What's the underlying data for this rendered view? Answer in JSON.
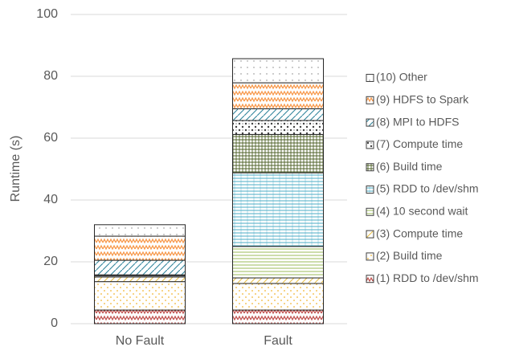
{
  "chart_data": {
    "type": "stacked_bar",
    "ylabel": "Runtime (s)",
    "categories": [
      "No Fault",
      "Fault"
    ],
    "series": [
      {
        "name": "(1) RDD to /dev/shm",
        "color": "#c0504d",
        "values": [
          4.4,
          4.4
        ]
      },
      {
        "name": "(2) Build time",
        "color": "#f2b632",
        "values": [
          9.2,
          8.6
        ]
      },
      {
        "name": "(3) Compute time",
        "color": "#e8c04a",
        "values": [
          1.5,
          1.8
        ]
      },
      {
        "name": "(4) 10 second wait",
        "color": "#9bbb59",
        "values": [
          0,
          10.2
        ]
      },
      {
        "name": "(5) RDD to /dev/shm",
        "color": "#4bacc6",
        "values": [
          0.4,
          23.8
        ]
      },
      {
        "name": "(6) Build time",
        "color": "#4f6228",
        "values": [
          0.3,
          12.4
        ]
      },
      {
        "name": "(7) Compute time",
        "color": "#404040",
        "values": [
          0,
          4.5
        ]
      },
      {
        "name": "(8) MPI to HDFS",
        "color": "#31859c",
        "values": [
          4.7,
          3.8
        ]
      },
      {
        "name": "(9) HDFS to Spark",
        "color": "#f79646",
        "values": [
          7.8,
          8.4
        ]
      },
      {
        "name": "(10) Other",
        "color": "#7f7f7f",
        "values": [
          3.7,
          7.8
        ]
      }
    ],
    "ylim": [
      0,
      100
    ],
    "yticks": [
      0,
      20,
      40,
      60,
      80,
      100
    ],
    "grid": true,
    "legend": "right"
  }
}
